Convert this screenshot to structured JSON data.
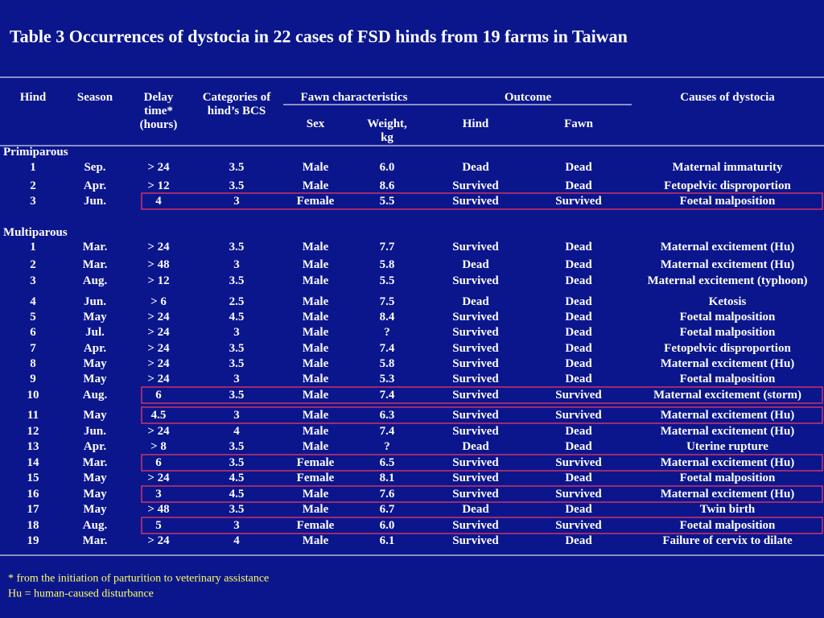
{
  "title": "Table 3 Occurrences of dystocia in 22 cases of FSD hinds from 19 farms in Taiwan",
  "table": {
    "columns": [
      [
        "Hind"
      ],
      [
        "Season"
      ],
      [
        "Delay",
        "time*",
        "(hours)"
      ],
      [
        "Categories of",
        "hind’s BCS"
      ],
      [
        "Sex"
      ],
      [
        "Weight,",
        "kg"
      ],
      [
        "Hind"
      ],
      [
        "Fawn"
      ],
      [
        "Causes of dystocia"
      ]
    ],
    "groups": [
      "Fawn characteristics",
      "Outcome"
    ],
    "sections": [
      {
        "label": "Primiparous",
        "rows": [
          [
            "1",
            "Sep.",
            "> 24",
            "3.5",
            "Male",
            "6.0",
            "Dead",
            "Dead",
            "Maternal immaturity"
          ],
          [
            "2",
            "Apr.",
            "> 12",
            "3.5",
            "Male",
            "8.6",
            "Survived",
            "Dead",
            "Fetopelvic disproportion"
          ],
          [
            "3",
            "Jun.",
            "4",
            "3",
            "Female",
            "5.5",
            "Survived",
            "Survived",
            "Foetal malposition"
          ]
        ]
      },
      {
        "label": "Multiparous",
        "rows": [
          [
            "1",
            "Mar.",
            "> 24",
            "3.5",
            "Male",
            "7.7",
            "Survived",
            "Dead",
            "Maternal excitement (Hu)"
          ],
          [
            "2",
            "Mar.",
            "> 48",
            "3",
            "Male",
            "5.8",
            "Dead",
            "Dead",
            "Maternal excitement (Hu)"
          ],
          [
            "3",
            "Aug.",
            "> 12",
            "3.5",
            "Male",
            "5.5",
            "Survived",
            "Dead",
            "Maternal excitement (typhoon)"
          ],
          [
            "4",
            "Jun.",
            "> 6",
            "2.5",
            "Male",
            "7.5",
            "Dead",
            "Dead",
            "Ketosis"
          ],
          [
            "5",
            "May",
            "> 24",
            "4.5",
            "Male",
            "8.4",
            "Survived",
            "Dead",
            "Foetal malposition"
          ],
          [
            "6",
            "Jul.",
            "> 24",
            "3",
            "Male",
            "?",
            "Survived",
            "Dead",
            "Foetal malposition"
          ],
          [
            "7",
            "Apr.",
            "> 24",
            "3.5",
            "Male",
            "7.4",
            "Survived",
            "Dead",
            "Fetopelvic disproportion"
          ],
          [
            "8",
            "May",
            "> 24",
            "3.5",
            "Male",
            "5.8",
            "Survived",
            "Dead",
            "Maternal excitement (Hu)"
          ],
          [
            "9",
            "May",
            "> 24",
            "3",
            "Male",
            "5.3",
            "Survived",
            "Dead",
            "Foetal malposition"
          ],
          [
            "10",
            "Aug.",
            "6",
            "3.5",
            "Male",
            "7.4",
            "Survived",
            "Survived",
            "Maternal excitement (storm)"
          ],
          [
            "11",
            "May",
            "4.5",
            "3",
            "Male",
            "6.3",
            "Survived",
            "Survived",
            "Maternal excitement (Hu)"
          ],
          [
            "12",
            "Jun.",
            "> 24",
            "4",
            "Male",
            "7.4",
            "Survived",
            "Dead",
            "Maternal excitement (Hu)"
          ],
          [
            "13",
            "Apr.",
            "> 8",
            "3.5",
            "Male",
            "?",
            "Dead",
            "Dead",
            "Uterine rupture"
          ],
          [
            "14",
            "Mar.",
            "6",
            "3.5",
            "Female",
            "6.5",
            "Survived",
            "Survived",
            "Maternal excitement (Hu)"
          ],
          [
            "15",
            "May",
            "> 24",
            "4.5",
            "Female",
            "8.1",
            "Survived",
            "Dead",
            "Foetal malposition"
          ],
          [
            "16",
            "May",
            "3",
            "4.5",
            "Male",
            "7.6",
            "Survived",
            "Survived",
            "Maternal excitement (Hu)"
          ],
          [
            "17",
            "May",
            "> 48",
            "3.5",
            "Male",
            "6.7",
            "Dead",
            "Dead",
            "Twin birth"
          ],
          [
            "18",
            "Aug.",
            "5",
            "3",
            "Female",
            "6.0",
            "Survived",
            "Survived",
            "Foetal malposition"
          ],
          [
            "19",
            "Mar.",
            "> 24",
            "4",
            "Male",
            "6.1",
            "Survived",
            "Dead",
            "Failure of cervix to dilate"
          ]
        ]
      }
    ]
  },
  "footnotes": [
    "* from the initiation of parturition to veterinary assistance",
    "Hu = human-caused disturbance"
  ]
}
